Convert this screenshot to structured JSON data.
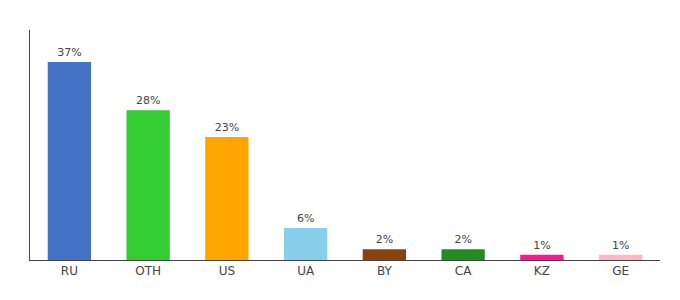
{
  "chart_data": {
    "type": "bar",
    "categories": [
      "RU",
      "OTH",
      "US",
      "UA",
      "BY",
      "CA",
      "KZ",
      "GE"
    ],
    "values": [
      37,
      28,
      23,
      6,
      2,
      2,
      1,
      1
    ],
    "value_labels": [
      "37%",
      "28%",
      "23%",
      "6%",
      "2%",
      "2%",
      "1%",
      "1%"
    ],
    "colors": [
      "#4472C4",
      "#33CC33",
      "#FFA500",
      "#87CEEB",
      "#8B4010",
      "#228B22",
      "#FF1493",
      "#FFB6C1"
    ],
    "ylim": [
      0,
      43
    ],
    "grid": false,
    "data_labels": true,
    "tick_labels": "x"
  }
}
